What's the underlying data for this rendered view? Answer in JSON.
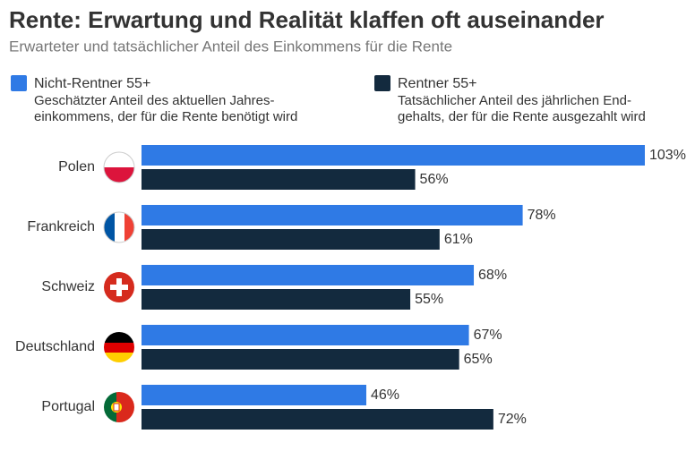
{
  "chart_data": {
    "type": "bar",
    "orientation": "horizontal",
    "title": "Rente: Erwartung und Realität klaffen oft auseinander",
    "subtitle": "Erwarteter und tatsächlicher Anteil des Einkommens für die Rente",
    "categories": [
      "Polen",
      "Frankreich",
      "Schweiz",
      "Deutschland",
      "Portugal"
    ],
    "series": [
      {
        "name": "Nicht-Rentner 55+",
        "description": [
          "Geschätzter Anteil des aktuellen Jahres-",
          "einkommens, der für die Rente benötigt wird"
        ],
        "color": "#2f7ae5",
        "values": [
          103,
          78,
          68,
          67,
          46
        ],
        "value_labels": [
          "103%",
          "78%",
          "68%",
          "67%",
          "46%"
        ]
      },
      {
        "name": "Rentner 55+",
        "description": [
          "Tatsächlicher Anteil des jährlichen End-",
          "gehalts, der für die Rente ausgezahlt wird"
        ],
        "color": "#132a3e",
        "values": [
          56,
          61,
          55,
          65,
          72
        ],
        "value_labels": [
          "56%",
          "61%",
          "55%",
          "65%",
          "72%"
        ]
      }
    ]
  }
}
